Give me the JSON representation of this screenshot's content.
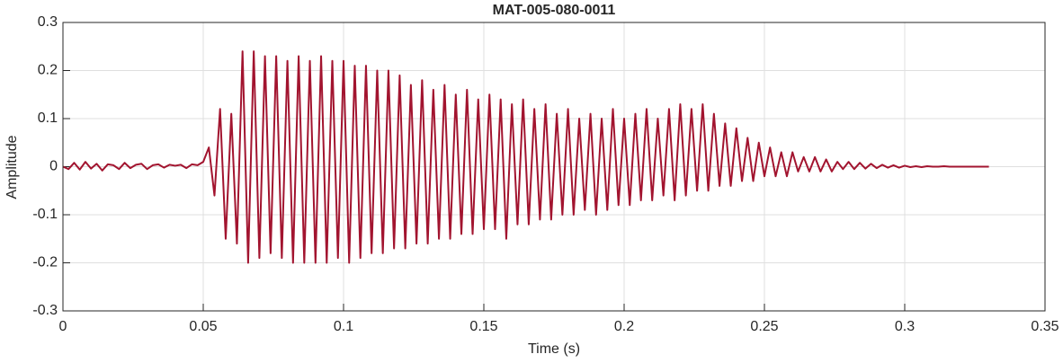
{
  "chart_data": {
    "type": "line",
    "title": "MAT-005-080-0011",
    "x_label": "Time (s)",
    "y_label": "Amplitude",
    "color": "#a2142f",
    "grid": true,
    "xlim": [
      0,
      0.35
    ],
    "xticks": [
      0,
      0.05,
      0.1,
      0.15,
      0.2,
      0.25,
      0.3,
      0.35
    ],
    "ylim": [
      -0.3,
      0.3
    ],
    "yticks": [
      -0.3,
      -0.2,
      -0.1,
      0,
      0.1,
      0.2,
      0.3
    ],
    "x": [
      0,
      0.002,
      0.004,
      0.006,
      0.008,
      0.01,
      0.012,
      0.014,
      0.016,
      0.018,
      0.02,
      0.022,
      0.024,
      0.026,
      0.028,
      0.03,
      0.032,
      0.034,
      0.036,
      0.038,
      0.04,
      0.042,
      0.044,
      0.046,
      0.048,
      0.05,
      0.052,
      0.054,
      0.056,
      0.058,
      0.06,
      0.062,
      0.064,
      0.066,
      0.068,
      0.07,
      0.072,
      0.074,
      0.076,
      0.078,
      0.08,
      0.082,
      0.084,
      0.086,
      0.088,
      0.09,
      0.092,
      0.094,
      0.096,
      0.098,
      0.1,
      0.102,
      0.104,
      0.106,
      0.108,
      0.11,
      0.112,
      0.114,
      0.116,
      0.118,
      0.12,
      0.122,
      0.124,
      0.126,
      0.128,
      0.13,
      0.132,
      0.134,
      0.136,
      0.138,
      0.14,
      0.142,
      0.144,
      0.146,
      0.148,
      0.15,
      0.152,
      0.154,
      0.156,
      0.158,
      0.16,
      0.162,
      0.164,
      0.166,
      0.168,
      0.17,
      0.172,
      0.174,
      0.176,
      0.178,
      0.18,
      0.182,
      0.184,
      0.186,
      0.188,
      0.19,
      0.192,
      0.194,
      0.196,
      0.198,
      0.2,
      0.202,
      0.204,
      0.206,
      0.208,
      0.21,
      0.212,
      0.214,
      0.216,
      0.218,
      0.22,
      0.222,
      0.224,
      0.226,
      0.228,
      0.23,
      0.232,
      0.234,
      0.236,
      0.238,
      0.24,
      0.242,
      0.244,
      0.246,
      0.248,
      0.25,
      0.252,
      0.254,
      0.256,
      0.258,
      0.26,
      0.262,
      0.264,
      0.266,
      0.268,
      0.27,
      0.272,
      0.274,
      0.276,
      0.278,
      0.28,
      0.282,
      0.284,
      0.286,
      0.288,
      0.29,
      0.292,
      0.294,
      0.296,
      0.298,
      0.3,
      0.302,
      0.304,
      0.306,
      0.308,
      0.31,
      0.312,
      0.314,
      0.316,
      0.318,
      0.32,
      0.322,
      0.324,
      0.326,
      0.328,
      0.33
    ],
    "values": [
      0,
      -0.005,
      0.008,
      -0.006,
      0.01,
      -0.004,
      0.006,
      -0.008,
      0.005,
      0.003,
      -0.005,
      0.008,
      -0.003,
      0.004,
      0.006,
      -0.005,
      0.003,
      0.005,
      -0.002,
      0.004,
      0.002,
      0.004,
      -0.003,
      0.005,
      0.003,
      0.01,
      0.04,
      -0.06,
      0.12,
      -0.15,
      0.11,
      -0.16,
      0.24,
      -0.2,
      0.24,
      -0.19,
      0.23,
      -0.18,
      0.23,
      -0.19,
      0.22,
      -0.2,
      0.23,
      -0.2,
      0.22,
      -0.2,
      0.23,
      -0.2,
      0.22,
      -0.19,
      0.22,
      -0.2,
      0.21,
      -0.19,
      0.21,
      -0.18,
      0.2,
      -0.18,
      0.2,
      -0.17,
      0.19,
      -0.17,
      0.17,
      -0.16,
      0.18,
      -0.16,
      0.16,
      -0.15,
      0.17,
      -0.15,
      0.15,
      -0.14,
      0.16,
      -0.14,
      0.14,
      -0.13,
      0.15,
      -0.13,
      0.14,
      -0.15,
      0.13,
      -0.12,
      0.14,
      -0.12,
      0.12,
      -0.11,
      0.13,
      -0.11,
      0.11,
      -0.1,
      0.12,
      -0.1,
      0.1,
      -0.09,
      0.11,
      -0.1,
      0.1,
      -0.09,
      0.12,
      -0.08,
      0.1,
      -0.08,
      0.11,
      -0.07,
      0.12,
      -0.07,
      0.1,
      -0.06,
      0.12,
      -0.07,
      0.13,
      -0.06,
      0.12,
      -0.05,
      0.13,
      -0.05,
      0.11,
      -0.04,
      0.09,
      -0.04,
      0.08,
      -0.03,
      0.06,
      -0.03,
      0.05,
      -0.02,
      0.04,
      -0.02,
      0.03,
      -0.02,
      0.03,
      -0.01,
      0.02,
      -0.01,
      0.02,
      -0.01,
      0.015,
      -0.01,
      0.01,
      -0.005,
      0.01,
      -0.005,
      0.008,
      -0.004,
      0.006,
      -0.003,
      0.004,
      -0.002,
      0.003,
      -0.002,
      0.002,
      -0.001,
      0.001,
      -0.001,
      0.001,
      0,
      0,
      0.001,
      0,
      0,
      0,
      0,
      0,
      0,
      0,
      0
    ]
  }
}
